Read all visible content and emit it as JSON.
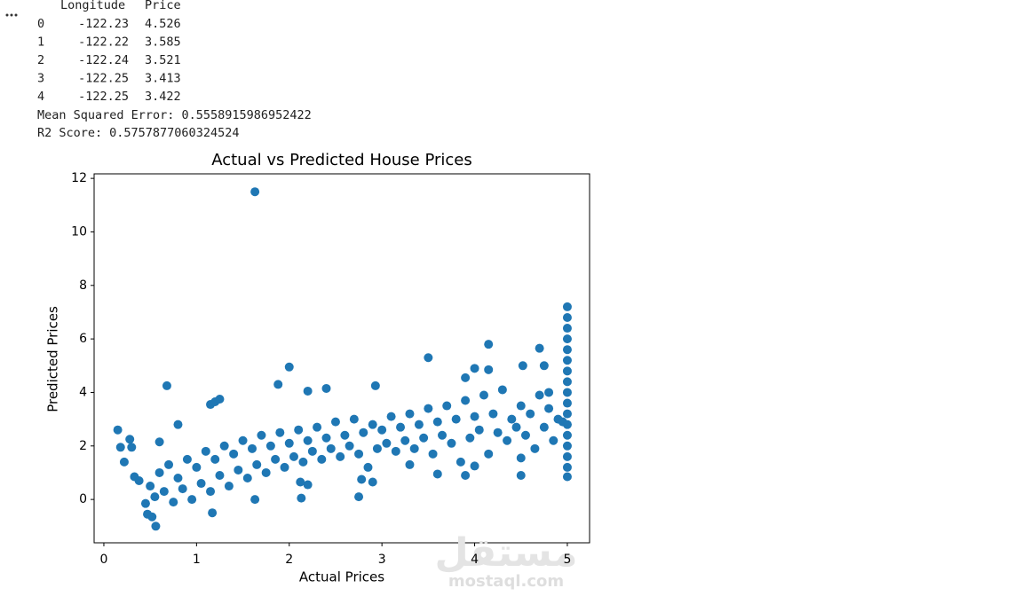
{
  "output": {
    "table": {
      "columns": [
        "Longitude",
        "Price"
      ],
      "index": [
        0,
        1,
        2,
        3,
        4
      ],
      "rows": [
        [
          -122.23,
          4.526
        ],
        [
          -122.22,
          3.585
        ],
        [
          -122.24,
          3.521
        ],
        [
          -122.25,
          3.413
        ],
        [
          -122.25,
          3.422
        ]
      ]
    },
    "mse_label": "Mean Squared Error:",
    "mse": 0.5558915986952422,
    "r2_label": "R2 Score:",
    "r2": 0.5757877060324524
  },
  "watermark": {
    "logo": "مستقل",
    "site": "mostaql.com"
  },
  "chart_data": {
    "type": "scatter",
    "title": "Actual vs Predicted House Prices",
    "x_label": "Actual Prices",
    "y_label": "Predicted Prices",
    "color": "#1f77b4",
    "xlim": [
      -0.105,
      5.24
    ],
    "ylim": [
      -1.62,
      12.17
    ],
    "xticks": [
      0,
      1,
      2,
      3,
      4,
      5
    ],
    "yticks": [
      0,
      2,
      4,
      6,
      8,
      10,
      12
    ],
    "series": [
      {
        "name": null,
        "color": "#1f77b4",
        "x": [
          1.63,
          0.68,
          1.15,
          1.2,
          1.25,
          1.88,
          2.0,
          2.2,
          2.4,
          2.93,
          3.5,
          4.15,
          4.7,
          4.52,
          4.75,
          4.0,
          4.15,
          3.9,
          4.8,
          0.15,
          0.18,
          0.22,
          0.28,
          0.3,
          0.33,
          0.38,
          0.45,
          0.47,
          0.52,
          0.56,
          1.17,
          0.6,
          0.8,
          1.63,
          2.13,
          2.75,
          2.2,
          2.12,
          2.78,
          2.9,
          3.6,
          3.9,
          4.5,
          4.0,
          3.3,
          4.5,
          0.5,
          0.6,
          0.7,
          0.8,
          0.9,
          1.0,
          1.1,
          1.2,
          1.3,
          1.4,
          1.5,
          1.6,
          1.7,
          1.8,
          1.9,
          2.0,
          2.1,
          2.2,
          2.3,
          2.4,
          2.5,
          2.6,
          2.7,
          2.8,
          2.9,
          3.0,
          3.1,
          3.2,
          3.3,
          3.4,
          3.5,
          3.6,
          3.7,
          3.8,
          3.9,
          4.0,
          4.1,
          4.2,
          4.3,
          4.4,
          4.5,
          4.6,
          4.7,
          4.8,
          4.9,
          0.55,
          0.65,
          0.75,
          0.85,
          0.95,
          1.05,
          1.15,
          1.25,
          1.35,
          1.45,
          1.55,
          1.65,
          1.75,
          1.85,
          1.95,
          2.05,
          2.15,
          2.25,
          2.35,
          2.45,
          2.55,
          2.65,
          2.75,
          2.85,
          2.95,
          3.05,
          3.15,
          3.25,
          3.35,
          3.45,
          3.55,
          3.65,
          3.75,
          3.85,
          3.95,
          4.05,
          4.15,
          4.25,
          4.35,
          4.45,
          4.55,
          4.65,
          4.75,
          4.85,
          4.95,
          5.0,
          5.0,
          5.0,
          5.0,
          5.0,
          5.0,
          5.0,
          5.0,
          5.0,
          5.0,
          5.0,
          5.0,
          5.0,
          5.0,
          5.0,
          5.0,
          5.0
        ],
        "values": [
          11.5,
          4.25,
          3.55,
          3.65,
          3.75,
          4.3,
          4.95,
          4.05,
          4.15,
          4.25,
          5.3,
          5.8,
          5.65,
          5.0,
          5.0,
          4.9,
          4.85,
          4.55,
          4.0,
          2.6,
          1.95,
          1.4,
          2.25,
          1.95,
          0.85,
          0.7,
          -0.15,
          -0.55,
          -0.65,
          -1.0,
          -0.5,
          2.15,
          2.8,
          0.0,
          0.05,
          0.1,
          0.55,
          0.65,
          0.75,
          0.65,
          0.95,
          0.9,
          0.9,
          1.25,
          1.3,
          1.55,
          0.5,
          1.0,
          1.3,
          0.8,
          1.5,
          1.2,
          1.8,
          1.5,
          2.0,
          1.7,
          2.2,
          1.9,
          2.4,
          2.0,
          2.5,
          2.1,
          2.6,
          2.2,
          2.7,
          2.3,
          2.9,
          2.4,
          3.0,
          2.5,
          2.8,
          2.6,
          3.1,
          2.7,
          3.2,
          2.8,
          3.4,
          2.9,
          3.5,
          3.0,
          3.7,
          3.1,
          3.9,
          3.2,
          4.1,
          3.0,
          3.5,
          3.2,
          3.9,
          3.4,
          3.0,
          0.1,
          0.3,
          -0.1,
          0.4,
          0.0,
          0.6,
          0.3,
          0.9,
          0.5,
          1.1,
          0.8,
          1.3,
          1.0,
          1.5,
          1.2,
          1.6,
          1.4,
          1.8,
          1.5,
          1.9,
          1.6,
          2.0,
          1.7,
          1.2,
          1.9,
          2.1,
          1.8,
          2.2,
          1.9,
          2.3,
          1.7,
          2.4,
          2.1,
          1.4,
          2.3,
          2.6,
          1.7,
          2.5,
          2.2,
          2.7,
          2.4,
          1.9,
          2.7,
          2.2,
          2.9,
          0.85,
          1.2,
          1.6,
          2.0,
          2.4,
          2.8,
          3.2,
          3.6,
          4.0,
          4.4,
          4.8,
          5.2,
          5.6,
          6.0,
          6.4,
          6.8,
          7.2
        ]
      }
    ]
  }
}
